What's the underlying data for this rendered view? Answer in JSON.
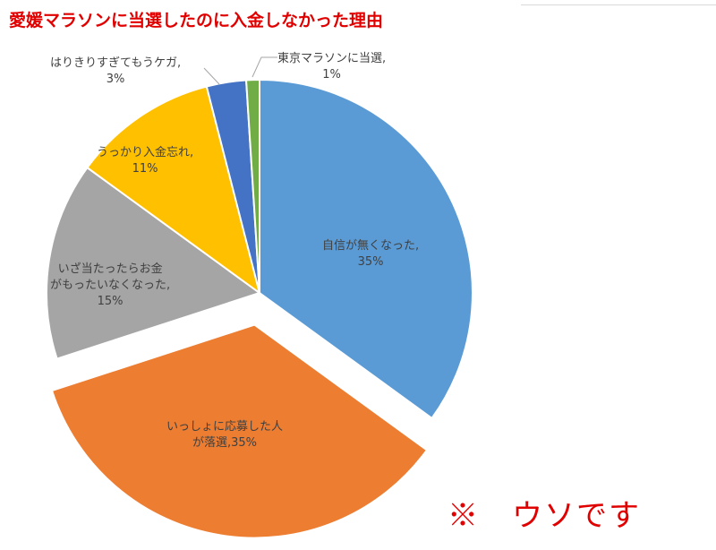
{
  "chart_data": {
    "type": "pie",
    "title": "愛媛マラソンに当選したのに入金しなかった理由",
    "slices": [
      {
        "label_lines": [
          "自信が無くなった,"
        ],
        "pct_text": "35%",
        "value": 35,
        "color": "#5b9bd5",
        "explode": false
      },
      {
        "label_lines": [
          "いっしょに応募した人",
          "が落選,"
        ],
        "pct_text": "35%",
        "value": 35,
        "color": "#ed7d31",
        "explode": true
      },
      {
        "label_lines": [
          "いざ当たったらお金",
          "がもったいなくなった,"
        ],
        "pct_text": "15%",
        "value": 15,
        "color": "#a5a5a5",
        "explode": false
      },
      {
        "label_lines": [
          "うっかり入金忘れ,"
        ],
        "pct_text": "11%",
        "value": 11,
        "color": "#ffc000",
        "explode": false
      },
      {
        "label_lines": [
          "はりきりすぎてもうケガ,"
        ],
        "pct_text": "3%",
        "value": 3,
        "color": "#4472c4",
        "explode": false
      },
      {
        "label_lines": [
          "東京マラソンに当選,"
        ],
        "pct_text": "1%",
        "value": 1,
        "color": "#70ad47",
        "explode": false
      }
    ],
    "start_angle_deg": 0,
    "direction": "clockwise",
    "legend": "none",
    "labels": "data-labels with leader lines"
  },
  "disclaimer": "※　ウソです"
}
